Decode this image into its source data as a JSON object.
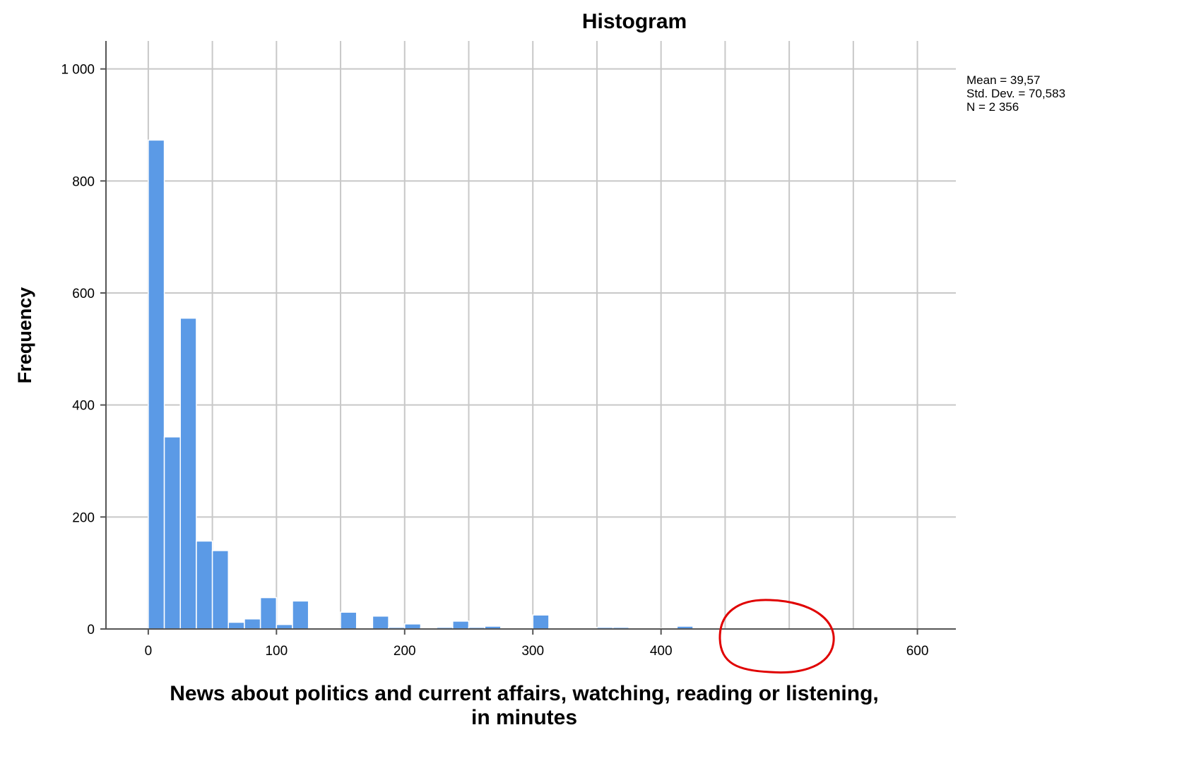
{
  "chart_data": {
    "type": "bar",
    "title": "Histogram",
    "xlabel": "News about politics and current affairs, watching, reading or listening, in minutes",
    "xlabel_lines": [
      "News about politics and current affairs, watching, reading or listening,",
      "in minutes"
    ],
    "ylabel": "Frequency",
    "xlim": [
      -33,
      630
    ],
    "ylim": [
      0,
      1050
    ],
    "x_ticks": [
      0,
      100,
      200,
      300,
      400,
      600
    ],
    "x_tick_labels": [
      "0",
      "100",
      "200",
      "300",
      "400",
      "600"
    ],
    "y_ticks": [
      0,
      200,
      400,
      600,
      800,
      1000
    ],
    "y_tick_labels": [
      "0",
      "200",
      "400",
      "600",
      "800",
      "1 000"
    ],
    "grid": true,
    "bin_width": 12.5,
    "bins_start": [
      0,
      12.5,
      25,
      37.5,
      50,
      62.5,
      75,
      87.5,
      100,
      112.5,
      125,
      137.5,
      150,
      162.5,
      175,
      187.5,
      200,
      212.5,
      225,
      237.5,
      250,
      262.5,
      275,
      287.5,
      300,
      312.5,
      325,
      337.5,
      350,
      362.5,
      375,
      387.5,
      400,
      412.5,
      425
    ],
    "values": [
      873,
      343,
      555,
      157,
      140,
      12,
      18,
      56,
      8,
      50,
      2,
      2,
      30,
      2,
      23,
      3,
      9,
      2,
      3,
      14,
      3,
      5,
      1,
      1,
      25,
      2,
      2,
      1,
      3,
      3,
      1,
      1,
      1,
      5,
      1
    ],
    "bar_color": "#5b9ae6",
    "bar_edge_color": "#ffffff",
    "grid_color": "#c8c8c8",
    "annotation_circle_color": "#e00000",
    "stats": {
      "mean": "Mean = 39,57",
      "std": "Std. Dev. = 70,583",
      "n": "N = 2 356"
    }
  }
}
